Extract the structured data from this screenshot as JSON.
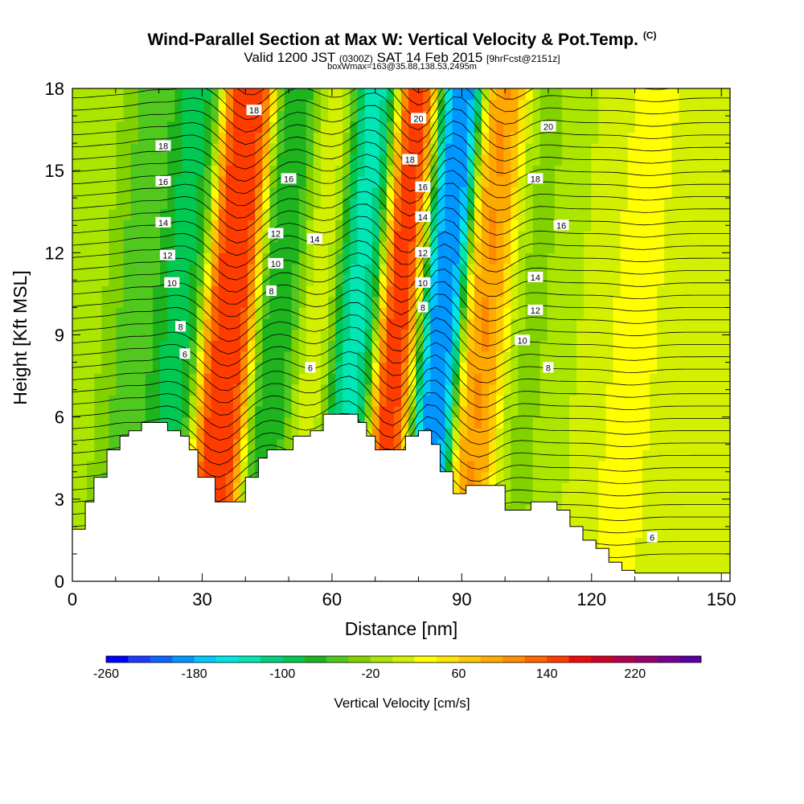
{
  "header": {
    "title_main": "Wind-Parallel Section at Max W: Vertical Velocity & Pot.Temp.",
    "title_mark": "(C)",
    "valid_prefix": "Valid 1200 JST",
    "valid_utc": "(0300Z)",
    "valid_date": "SAT 14 Feb 2015",
    "valid_fcst": "[9hrFcst@2151z]",
    "box_info": "boxWmax=163@35.88,138.53,2495m"
  },
  "chart_data": {
    "type": "heatmap",
    "title": "Wind-Parallel Section at Max W: Vertical Velocity & Pot.Temp.",
    "xlabel": "Distance [nm]",
    "ylabel": "Height [Kft MSL]",
    "xlim": [
      0,
      152
    ],
    "ylim": [
      0,
      18
    ],
    "x_ticks": [
      0,
      30,
      60,
      90,
      120,
      150
    ],
    "y_ticks": [
      0,
      3,
      6,
      9,
      12,
      15,
      18
    ],
    "colorbar": {
      "label": "Vertical Velocity [cm/s]",
      "range": [
        -260,
        280
      ],
      "tick_values": [
        -260,
        -180,
        -100,
        -20,
        60,
        140,
        220
      ],
      "colors": [
        "#0000ff",
        "#1e3cff",
        "#0a64ff",
        "#0096ff",
        "#00c8ff",
        "#00e6e6",
        "#00e6b4",
        "#00d282",
        "#00c850",
        "#1eb41e",
        "#50c81e",
        "#82d200",
        "#aae600",
        "#d2f000",
        "#ffff00",
        "#ffe600",
        "#ffc800",
        "#ffaa00",
        "#ff8c00",
        "#ff6400",
        "#ff3c00",
        "#f00a0a",
        "#d20028",
        "#b40050",
        "#96006e",
        "#780090",
        "#5a00a0"
      ]
    },
    "terrain_top_kft": [
      [
        0,
        1.9
      ],
      [
        3,
        2.9
      ],
      [
        5,
        3.8
      ],
      [
        8,
        4.8
      ],
      [
        11,
        5.3
      ],
      [
        13,
        5.5
      ],
      [
        16,
        5.8
      ],
      [
        22,
        5.5
      ],
      [
        25,
        5.3
      ],
      [
        27,
        4.8
      ],
      [
        29,
        3.8
      ],
      [
        33,
        2.9
      ],
      [
        37,
        2.9
      ],
      [
        40,
        3.8
      ],
      [
        43,
        4.5
      ],
      [
        45,
        4.8
      ],
      [
        48,
        4.8
      ],
      [
        51,
        5.3
      ],
      [
        55,
        5.5
      ],
      [
        58,
        6.1
      ],
      [
        62,
        6.1
      ],
      [
        66,
        5.8
      ],
      [
        68,
        5.3
      ],
      [
        70,
        4.8
      ],
      [
        74,
        4.8
      ],
      [
        77,
        5.3
      ],
      [
        80,
        5.5
      ],
      [
        83,
        5.0
      ],
      [
        85,
        4.0
      ],
      [
        88,
        3.2
      ],
      [
        91,
        3.5
      ],
      [
        97,
        3.5
      ],
      [
        100,
        2.6
      ],
      [
        103,
        2.6
      ],
      [
        106,
        2.9
      ],
      [
        109,
        2.9
      ],
      [
        112,
        2.6
      ],
      [
        115,
        2.0
      ],
      [
        118,
        1.5
      ],
      [
        121,
        1.2
      ],
      [
        124,
        0.7
      ],
      [
        127,
        0.4
      ],
      [
        130,
        0.3
      ],
      [
        152,
        0.3
      ]
    ],
    "vertical_velocity_bands": [
      {
        "center_nm": 5,
        "value_cms": -20
      },
      {
        "center_nm": 14,
        "value_cms": -60
      },
      {
        "center_nm": 24,
        "value_cms": -100
      },
      {
        "center_nm": 36,
        "value_cms": 180
      },
      {
        "center_nm": 48,
        "value_cms": -90
      },
      {
        "center_nm": 56,
        "value_cms": 20
      },
      {
        "center_nm": 65,
        "value_cms": -150
      },
      {
        "center_nm": 76,
        "value_cms": 190
      },
      {
        "center_nm": 84,
        "value_cms": -240
      },
      {
        "center_nm": 96,
        "value_cms": 120
      },
      {
        "center_nm": 104,
        "value_cms": -30
      },
      {
        "center_nm": 130,
        "value_cms": 30
      }
    ],
    "potential_temperature_labels_c": [
      {
        "text": "18",
        "x_nm": 21,
        "y_kft": 15.9
      },
      {
        "text": "16",
        "x_nm": 21,
        "y_kft": 14.6
      },
      {
        "text": "14",
        "x_nm": 21,
        "y_kft": 13.1
      },
      {
        "text": "12",
        "x_nm": 22,
        "y_kft": 11.9
      },
      {
        "text": "10",
        "x_nm": 23,
        "y_kft": 10.9
      },
      {
        "text": "8",
        "x_nm": 25,
        "y_kft": 9.3
      },
      {
        "text": "6",
        "x_nm": 26,
        "y_kft": 8.3
      },
      {
        "text": "18",
        "x_nm": 42,
        "y_kft": 17.2
      },
      {
        "text": "16",
        "x_nm": 50,
        "y_kft": 14.7
      },
      {
        "text": "14",
        "x_nm": 56,
        "y_kft": 12.5
      },
      {
        "text": "12",
        "x_nm": 47,
        "y_kft": 12.7
      },
      {
        "text": "10",
        "x_nm": 47,
        "y_kft": 11.6
      },
      {
        "text": "8",
        "x_nm": 46,
        "y_kft": 10.6
      },
      {
        "text": "6",
        "x_nm": 55,
        "y_kft": 7.8
      },
      {
        "text": "20",
        "x_nm": 80,
        "y_kft": 16.9
      },
      {
        "text": "18",
        "x_nm": 78,
        "y_kft": 15.4
      },
      {
        "text": "16",
        "x_nm": 81,
        "y_kft": 14.4
      },
      {
        "text": "14",
        "x_nm": 81,
        "y_kft": 13.3
      },
      {
        "text": "12",
        "x_nm": 81,
        "y_kft": 12.0
      },
      {
        "text": "10",
        "x_nm": 81,
        "y_kft": 10.9
      },
      {
        "text": "8",
        "x_nm": 81,
        "y_kft": 10.0
      },
      {
        "text": "20",
        "x_nm": 110,
        "y_kft": 16.6
      },
      {
        "text": "18",
        "x_nm": 107,
        "y_kft": 14.7
      },
      {
        "text": "16",
        "x_nm": 113,
        "y_kft": 13.0
      },
      {
        "text": "14",
        "x_nm": 107,
        "y_kft": 11.1
      },
      {
        "text": "12",
        "x_nm": 107,
        "y_kft": 9.9
      },
      {
        "text": "10",
        "x_nm": 104,
        "y_kft": 8.8
      },
      {
        "text": "8",
        "x_nm": 110,
        "y_kft": 7.8
      },
      {
        "text": "6",
        "x_nm": 134,
        "y_kft": 1.6
      }
    ]
  }
}
